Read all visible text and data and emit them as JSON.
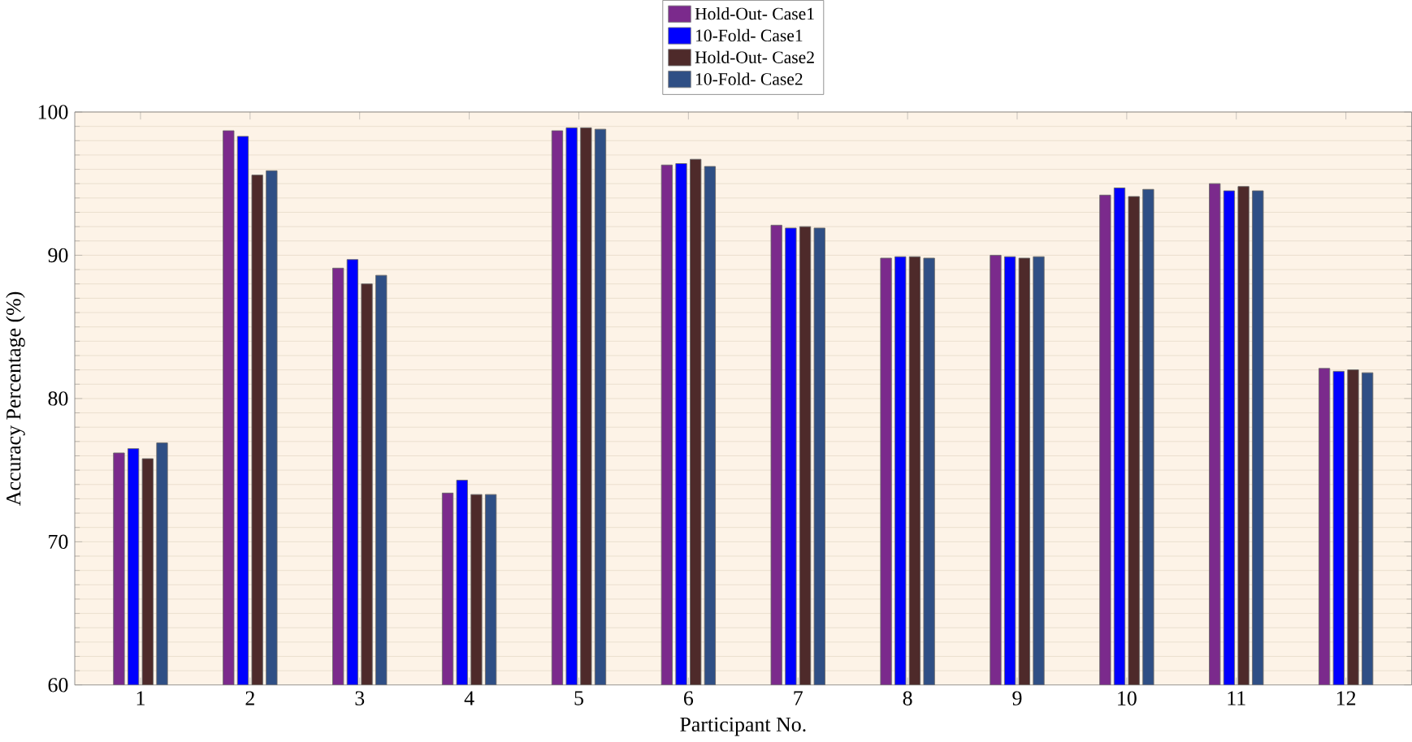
{
  "chart_data": {
    "type": "bar",
    "xlabel": "Participant No.",
    "ylabel": "Accuracy Percentage (%)",
    "categories": [
      "1",
      "2",
      "3",
      "4",
      "5",
      "6",
      "7",
      "8",
      "9",
      "10",
      "11",
      "12"
    ],
    "series": [
      {
        "name": "Hold-Out- Case1",
        "color": "#7b2a8c",
        "values": [
          76.2,
          98.7,
          89.1,
          73.4,
          98.7,
          96.3,
          92.1,
          89.8,
          90.0,
          94.2,
          95.0,
          82.1
        ]
      },
      {
        "name": "10-Fold- Case1",
        "color": "#0000ff",
        "values": [
          76.5,
          98.3,
          89.7,
          74.3,
          98.9,
          96.4,
          91.9,
          89.9,
          89.9,
          94.7,
          94.5,
          81.9
        ]
      },
      {
        "name": "Hold-Out- Case2",
        "color": "#4e2a2a",
        "values": [
          75.8,
          95.6,
          88.0,
          73.3,
          98.9,
          96.7,
          92.0,
          89.9,
          89.8,
          94.1,
          94.8,
          82.0
        ]
      },
      {
        "name": "10-Fold- Case2",
        "color": "#2f4f85",
        "values": [
          76.9,
          95.9,
          88.6,
          73.3,
          98.8,
          96.2,
          91.9,
          89.8,
          89.9,
          94.6,
          94.5,
          81.8
        ]
      }
    ],
    "ylim": [
      60,
      100
    ],
    "yticks": [
      60,
      70,
      80,
      90,
      100
    ],
    "grid": "y",
    "legend": "top"
  }
}
